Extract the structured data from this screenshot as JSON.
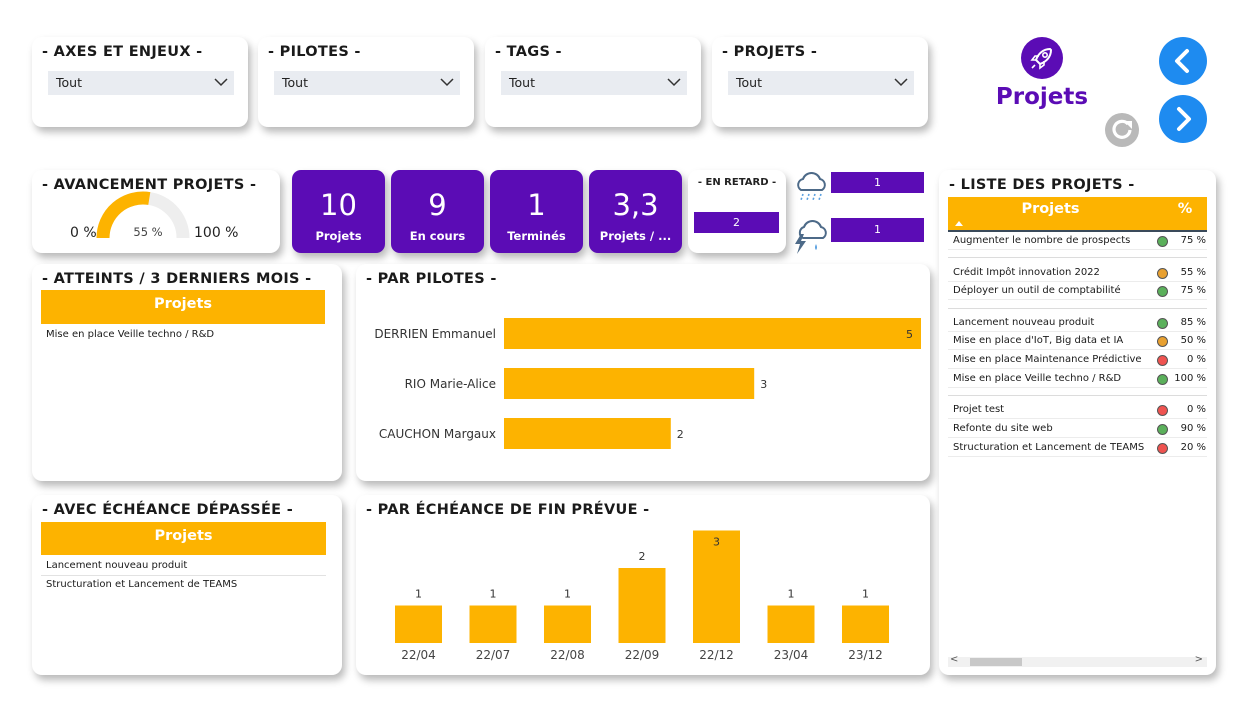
{
  "filters": [
    {
      "title": "- AXES ET ENJEUX -",
      "value": "Tout"
    },
    {
      "title": "- PILOTES -",
      "value": "Tout"
    },
    {
      "title": "- TAGS -",
      "value": "Tout"
    },
    {
      "title": "- PROJETS -",
      "value": "Tout"
    }
  ],
  "brand": {
    "title": "Projets",
    "icon": "rocket-icon",
    "color": "#5b0cb5"
  },
  "nav": {
    "prev_icon": "chevron-left-icon",
    "next_icon": "chevron-right-icon",
    "refresh_icon": "refresh-icon",
    "color": "#1e8bf0"
  },
  "avancement": {
    "title": "- AVANCEMENT PROJETS -",
    "min_label": "0 %",
    "max_label": "100 %",
    "value_label": "55 %",
    "value": 55
  },
  "kpis": [
    {
      "value": "10",
      "label": "Projets"
    },
    {
      "value": "9",
      "label": "En cours"
    },
    {
      "value": "1",
      "label": "Terminés"
    },
    {
      "value": "3,3",
      "label": "Projets / ..."
    }
  ],
  "retard": {
    "title": "- EN RETARD -",
    "value": "2"
  },
  "weather": [
    {
      "icon": "rain-cloud-icon",
      "value": "1"
    },
    {
      "icon": "storm-cloud-icon",
      "value": "1"
    }
  ],
  "atteints": {
    "title": "- ATTEINTS / 3 DERNIERS MOIS -",
    "header": "Projets",
    "rows": [
      "Mise en place Veille techno / R&D"
    ]
  },
  "echeance_depassee": {
    "title": "- AVEC ÉCHÉANCE DÉPASSÉE -",
    "header": "Projets",
    "rows": [
      "Lancement nouveau produit",
      "Structuration et Lancement de TEAMS"
    ]
  },
  "liste": {
    "title": "- LISTE DES PROJETS -",
    "col_projets": "Projets",
    "col_pct": "%",
    "rows": [
      {
        "name": "Augmenter le nombre de prospects",
        "status": "green",
        "pct": "75 %"
      },
      {
        "name": "Crédit Impôt innovation 2022",
        "status": "orange",
        "pct": "55 %"
      },
      {
        "name": "Déployer un outil de comptabilité",
        "status": "green",
        "pct": "75 %"
      },
      {
        "name": "Lancement nouveau produit",
        "status": "green",
        "pct": "85 %"
      },
      {
        "name": "Mise en place d'IoT, Big data et IA",
        "status": "orange",
        "pct": "50 %"
      },
      {
        "name": "Mise en place Maintenance Prédictive",
        "status": "red",
        "pct": "0 %"
      },
      {
        "name": "Mise en place Veille techno / R&D",
        "status": "green",
        "pct": "100 %"
      },
      {
        "name": "Projet test",
        "status": "red",
        "pct": "0 %"
      },
      {
        "name": "Refonte du site web",
        "status": "green",
        "pct": "90 %"
      },
      {
        "name": "Structuration et Lancement de TEAMS",
        "status": "red",
        "pct": "20 %"
      }
    ]
  },
  "colors": {
    "accent": "#5b0cb5",
    "bar": "#fdb300",
    "green": "#5bb05b",
    "orange": "#e8a030",
    "red": "#ef5350"
  },
  "chart_data": [
    {
      "type": "bar",
      "orientation": "horizontal",
      "title": "- PAR PILOTES -",
      "categories": [
        "DERRIEN Emmanuel",
        "RIO Marie-Alice",
        "CAUCHON Margaux"
      ],
      "values": [
        5,
        3,
        2
      ],
      "xlim": [
        0,
        5
      ]
    },
    {
      "type": "bar",
      "title": "- PAR ÉCHÉANCE DE FIN PRÉVUE -",
      "categories": [
        "22/04",
        "22/07",
        "22/08",
        "22/09",
        "22/12",
        "23/04",
        "23/12"
      ],
      "values": [
        1,
        1,
        1,
        2,
        3,
        1,
        1
      ],
      "ylim": [
        0,
        3
      ]
    }
  ]
}
